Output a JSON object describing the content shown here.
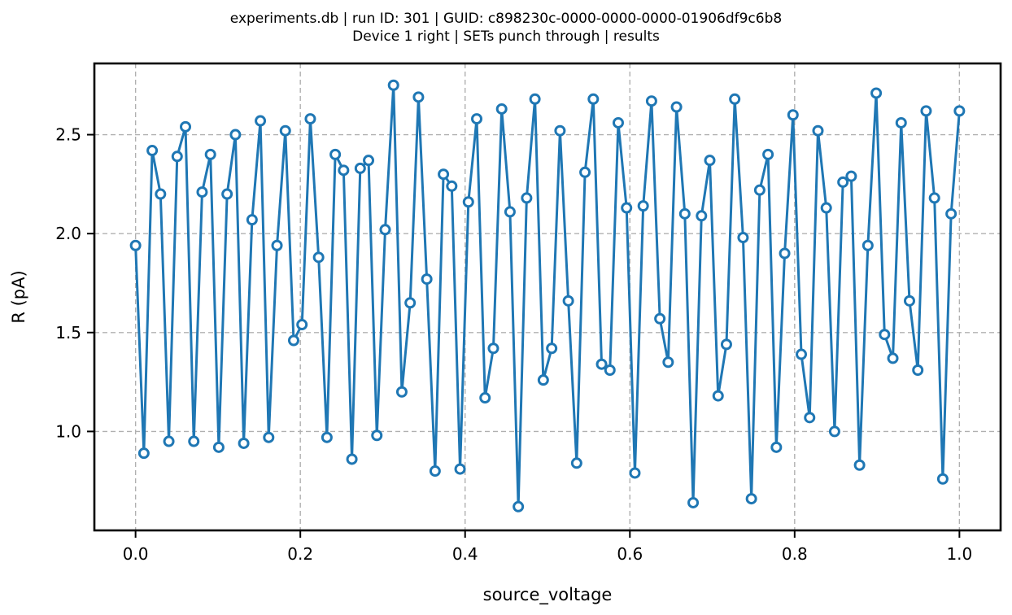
{
  "chart_data": {
    "type": "line",
    "title": "experiments.db | run ID: 301 | GUID: c898230c-0000-0000-0000-01906df9c6b8",
    "subtitle": "Device 1 right | SETs punch through | results",
    "xlabel": "source_voltage",
    "ylabel": "R (pA)",
    "xlim": [
      -0.05,
      1.05
    ],
    "ylim": [
      0.5,
      2.86
    ],
    "xticks": [
      0.0,
      0.2,
      0.4,
      0.6,
      0.8,
      1.0
    ],
    "xtick_labels": [
      "0.0",
      "0.2",
      "0.4",
      "0.6",
      "0.8",
      "1.0"
    ],
    "yticks": [
      1.0,
      1.5,
      2.0,
      2.5
    ],
    "ytick_labels": [
      "1.0",
      "1.5",
      "2.0",
      "2.5"
    ],
    "grid": true,
    "color": "#1f77b4",
    "marker": "hollow-circle",
    "series": [
      {
        "x": [
          0.0,
          0.0101,
          0.0202,
          0.0303,
          0.0404,
          0.0505,
          0.0606,
          0.0707,
          0.0808,
          0.0909,
          0.101,
          0.1111,
          0.1212,
          0.1313,
          0.1414,
          0.1515,
          0.1616,
          0.1717,
          0.1818,
          0.1919,
          0.202,
          0.2121,
          0.2222,
          0.2323,
          0.2424,
          0.2525,
          0.2626,
          0.2727,
          0.2828,
          0.2929,
          0.303,
          0.3131,
          0.3232,
          0.3333,
          0.3434,
          0.3535,
          0.3636,
          0.3737,
          0.3838,
          0.3939,
          0.404,
          0.4141,
          0.4242,
          0.4343,
          0.4444,
          0.4545,
          0.4646,
          0.4747,
          0.4848,
          0.4949,
          0.5051,
          0.5152,
          0.5253,
          0.5354,
          0.5455,
          0.5556,
          0.5657,
          0.5758,
          0.5859,
          0.596,
          0.6061,
          0.6162,
          0.6263,
          0.6364,
          0.6465,
          0.6566,
          0.6667,
          0.6768,
          0.6869,
          0.697,
          0.7071,
          0.7172,
          0.7273,
          0.7374,
          0.7475,
          0.7576,
          0.7677,
          0.7778,
          0.7879,
          0.798,
          0.8081,
          0.8182,
          0.8283,
          0.8384,
          0.8485,
          0.8586,
          0.8687,
          0.8788,
          0.8889,
          0.899,
          0.9091,
          0.9192,
          0.9293,
          0.9394,
          0.9495,
          0.9596,
          0.9697,
          0.9798,
          0.9899,
          1.0
        ],
        "y": [
          1.94,
          0.89,
          2.42,
          2.2,
          0.95,
          2.39,
          2.54,
          0.95,
          2.21,
          2.4,
          0.92,
          2.2,
          2.5,
          0.94,
          2.07,
          2.57,
          0.97,
          1.94,
          2.52,
          1.46,
          1.54,
          2.58,
          1.88,
          0.97,
          2.4,
          2.32,
          0.86,
          2.33,
          2.37,
          0.98,
          2.02,
          2.75,
          1.2,
          1.65,
          2.69,
          1.77,
          0.8,
          2.3,
          2.24,
          0.81,
          2.16,
          2.58,
          1.17,
          1.42,
          2.63,
          2.11,
          0.62,
          2.18,
          2.68,
          1.26,
          1.42,
          2.52,
          1.66,
          0.84,
          2.31,
          2.68,
          1.34,
          1.31,
          2.56,
          2.13,
          0.79,
          2.14,
          2.67,
          1.57,
          1.35,
          2.64,
          2.1,
          0.64,
          2.09,
          2.37,
          1.18,
          1.44,
          2.68,
          1.98,
          0.66,
          2.22,
          2.4,
          0.92,
          1.9,
          2.6,
          1.39,
          1.07,
          2.52,
          2.13,
          1.0,
          2.26,
          2.29,
          0.83,
          1.94,
          2.71,
          1.49,
          1.37,
          2.56,
          1.66,
          1.31,
          2.62,
          2.18,
          0.76,
          2.1,
          2.62
        ]
      }
    ]
  }
}
